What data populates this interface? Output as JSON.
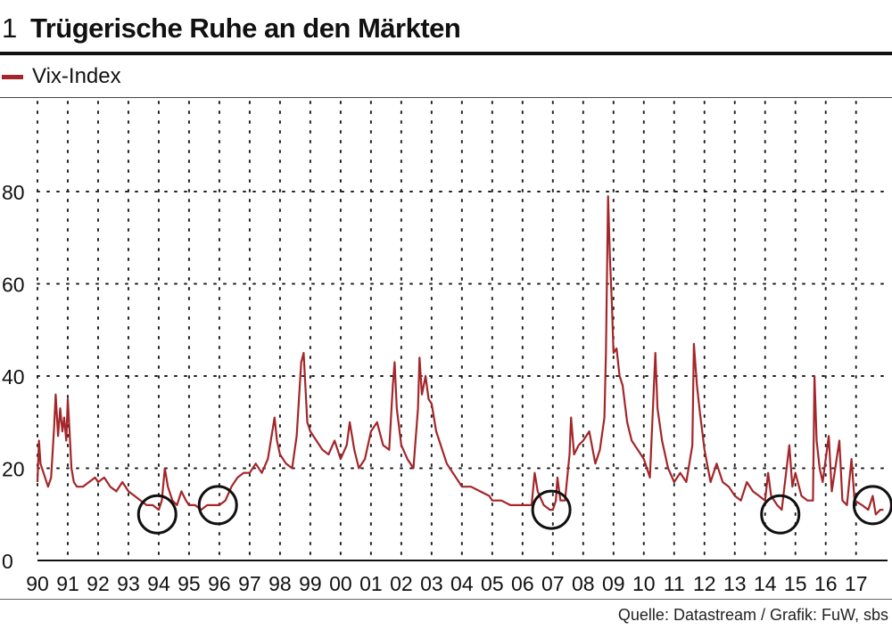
{
  "header": {
    "number": "1",
    "title": "Trügerische Ruhe an den Märkten"
  },
  "legend": {
    "label": "Vix-Index",
    "color": "#a3262a"
  },
  "source": "Quelle: Datastream / Grafik: FuW, sbs",
  "chart_data": {
    "type": "line",
    "title": "Trügerische Ruhe an den Märkten",
    "xlabel": "",
    "ylabel": "",
    "x_tick_labels": [
      "90",
      "91",
      "92",
      "93",
      "94",
      "95",
      "96",
      "97",
      "98",
      "99",
      "00",
      "01",
      "02",
      "03",
      "04",
      "05",
      "06",
      "07",
      "08",
      "09",
      "10",
      "11",
      "12",
      "13",
      "14",
      "15",
      "16",
      "17"
    ],
    "y_ticks": [
      0,
      20,
      40,
      60,
      80
    ],
    "xlim": [
      1990.0,
      2017.95
    ],
    "ylim": [
      0,
      100
    ],
    "grid": "dotted",
    "legend_position": "top-left",
    "series": [
      {
        "name": "Vix-Index",
        "color": "#a3262a",
        "points": [
          [
            1990.0,
            17
          ],
          [
            1990.05,
            26
          ],
          [
            1990.1,
            21
          ],
          [
            1990.2,
            19
          ],
          [
            1990.35,
            16
          ],
          [
            1990.45,
            18
          ],
          [
            1990.55,
            29
          ],
          [
            1990.6,
            36
          ],
          [
            1990.68,
            27
          ],
          [
            1990.75,
            33
          ],
          [
            1990.82,
            28
          ],
          [
            1990.88,
            31
          ],
          [
            1990.95,
            26
          ],
          [
            1991.0,
            35
          ],
          [
            1991.05,
            29
          ],
          [
            1991.12,
            20
          ],
          [
            1991.2,
            17
          ],
          [
            1991.3,
            16
          ],
          [
            1991.5,
            16
          ],
          [
            1991.7,
            17
          ],
          [
            1991.9,
            18
          ],
          [
            1992.0,
            17
          ],
          [
            1992.2,
            18
          ],
          [
            1992.4,
            16
          ],
          [
            1992.6,
            15
          ],
          [
            1992.8,
            17
          ],
          [
            1993.0,
            15
          ],
          [
            1993.2,
            14
          ],
          [
            1993.4,
            13
          ],
          [
            1993.6,
            12
          ],
          [
            1993.8,
            12
          ],
          [
            1994.0,
            11
          ],
          [
            1994.1,
            13
          ],
          [
            1994.2,
            20
          ],
          [
            1994.3,
            16
          ],
          [
            1994.45,
            13
          ],
          [
            1994.6,
            12
          ],
          [
            1994.75,
            15
          ],
          [
            1994.9,
            13
          ],
          [
            1995.0,
            12
          ],
          [
            1995.2,
            12
          ],
          [
            1995.4,
            11
          ],
          [
            1995.6,
            12
          ],
          [
            1995.8,
            12
          ],
          [
            1996.0,
            12
          ],
          [
            1996.2,
            13
          ],
          [
            1996.4,
            16
          ],
          [
            1996.6,
            18
          ],
          [
            1996.8,
            19
          ],
          [
            1997.0,
            19
          ],
          [
            1997.2,
            21
          ],
          [
            1997.4,
            19
          ],
          [
            1997.6,
            22
          ],
          [
            1997.82,
            31
          ],
          [
            1997.9,
            26
          ],
          [
            1998.0,
            23
          ],
          [
            1998.2,
            21
          ],
          [
            1998.4,
            20
          ],
          [
            1998.55,
            27
          ],
          [
            1998.7,
            43
          ],
          [
            1998.78,
            45
          ],
          [
            1998.9,
            30
          ],
          [
            1999.0,
            28
          ],
          [
            1999.2,
            26
          ],
          [
            1999.4,
            24
          ],
          [
            1999.6,
            23
          ],
          [
            1999.8,
            26
          ],
          [
            2000.0,
            22
          ],
          [
            2000.2,
            25
          ],
          [
            2000.3,
            30
          ],
          [
            2000.45,
            24
          ],
          [
            2000.6,
            20
          ],
          [
            2000.8,
            22
          ],
          [
            2001.0,
            28
          ],
          [
            2001.2,
            30
          ],
          [
            2001.4,
            25
          ],
          [
            2001.6,
            24
          ],
          [
            2001.72,
            38
          ],
          [
            2001.78,
            43
          ],
          [
            2001.85,
            33
          ],
          [
            2002.0,
            25
          ],
          [
            2002.2,
            22
          ],
          [
            2002.4,
            20
          ],
          [
            2002.55,
            33
          ],
          [
            2002.6,
            44
          ],
          [
            2002.68,
            36
          ],
          [
            2002.8,
            40
          ],
          [
            2002.9,
            35
          ],
          [
            2003.0,
            34
          ],
          [
            2003.15,
            28
          ],
          [
            2003.35,
            24
          ],
          [
            2003.5,
            21
          ],
          [
            2003.7,
            19
          ],
          [
            2003.9,
            17
          ],
          [
            2004.0,
            16
          ],
          [
            2004.3,
            16
          ],
          [
            2004.6,
            15
          ],
          [
            2004.9,
            14
          ],
          [
            2005.0,
            13
          ],
          [
            2005.3,
            13
          ],
          [
            2005.6,
            12
          ],
          [
            2005.9,
            12
          ],
          [
            2006.0,
            12
          ],
          [
            2006.3,
            12
          ],
          [
            2006.4,
            19
          ],
          [
            2006.5,
            15
          ],
          [
            2006.7,
            12
          ],
          [
            2006.9,
            11
          ],
          [
            2007.0,
            11
          ],
          [
            2007.1,
            13
          ],
          [
            2007.15,
            18
          ],
          [
            2007.25,
            13
          ],
          [
            2007.4,
            13
          ],
          [
            2007.55,
            23
          ],
          [
            2007.6,
            31
          ],
          [
            2007.7,
            23
          ],
          [
            2007.85,
            25
          ],
          [
            2008.0,
            26
          ],
          [
            2008.2,
            28
          ],
          [
            2008.4,
            21
          ],
          [
            2008.55,
            24
          ],
          [
            2008.7,
            31
          ],
          [
            2008.75,
            45
          ],
          [
            2008.82,
            79
          ],
          [
            2008.88,
            66
          ],
          [
            2008.95,
            55
          ],
          [
            2009.0,
            45
          ],
          [
            2009.1,
            46
          ],
          [
            2009.2,
            40
          ],
          [
            2009.3,
            38
          ],
          [
            2009.45,
            30
          ],
          [
            2009.6,
            26
          ],
          [
            2009.8,
            24
          ],
          [
            2010.0,
            22
          ],
          [
            2010.2,
            18
          ],
          [
            2010.38,
            45
          ],
          [
            2010.45,
            33
          ],
          [
            2010.6,
            26
          ],
          [
            2010.8,
            20
          ],
          [
            2011.0,
            17
          ],
          [
            2011.2,
            19
          ],
          [
            2011.4,
            17
          ],
          [
            2011.6,
            25
          ],
          [
            2011.65,
            47
          ],
          [
            2011.75,
            38
          ],
          [
            2011.85,
            32
          ],
          [
            2012.0,
            24
          ],
          [
            2012.2,
            17
          ],
          [
            2012.4,
            21
          ],
          [
            2012.6,
            17
          ],
          [
            2012.8,
            16
          ],
          [
            2013.0,
            14
          ],
          [
            2013.2,
            13
          ],
          [
            2013.4,
            17
          ],
          [
            2013.6,
            15
          ],
          [
            2013.8,
            14
          ],
          [
            2014.0,
            13
          ],
          [
            2014.1,
            19
          ],
          [
            2014.2,
            14
          ],
          [
            2014.4,
            12
          ],
          [
            2014.55,
            11
          ],
          [
            2014.8,
            25
          ],
          [
            2014.9,
            16
          ],
          [
            2015.0,
            19
          ],
          [
            2015.2,
            14
          ],
          [
            2015.4,
            13
          ],
          [
            2015.58,
            13
          ],
          [
            2015.63,
            40
          ],
          [
            2015.7,
            26
          ],
          [
            2015.8,
            20
          ],
          [
            2015.9,
            17
          ],
          [
            2016.0,
            22
          ],
          [
            2016.1,
            27
          ],
          [
            2016.2,
            15
          ],
          [
            2016.45,
            26
          ],
          [
            2016.55,
            13
          ],
          [
            2016.7,
            12
          ],
          [
            2016.85,
            22
          ],
          [
            2016.95,
            13
          ],
          [
            2017.2,
            12
          ],
          [
            2017.4,
            11
          ],
          [
            2017.55,
            14
          ],
          [
            2017.65,
            10
          ],
          [
            2017.8,
            11
          ],
          [
            2017.9,
            11
          ]
        ]
      }
    ],
    "annotations": [
      {
        "type": "circle",
        "label": "low-volatility-period",
        "x": 1993.95,
        "y": 10
      },
      {
        "type": "circle",
        "label": "low-volatility-period",
        "x": 1995.95,
        "y": 12
      },
      {
        "type": "circle",
        "label": "low-volatility-period",
        "x": 2006.95,
        "y": 11
      },
      {
        "type": "circle",
        "label": "low-volatility-period",
        "x": 2014.5,
        "y": 10
      },
      {
        "type": "circle",
        "label": "low-volatility-period",
        "x": 2017.55,
        "y": 12
      }
    ]
  }
}
